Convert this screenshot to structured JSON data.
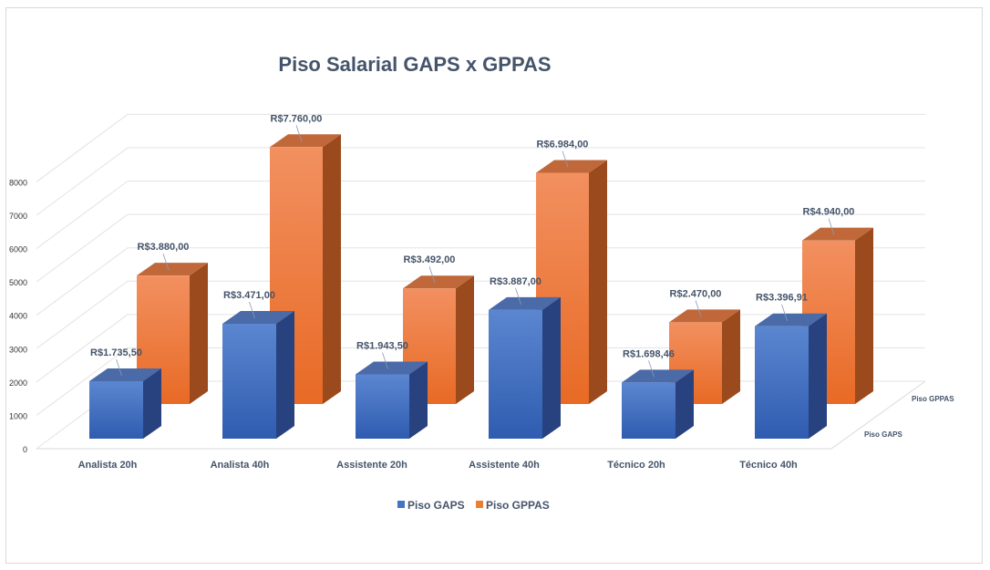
{
  "chart_data": {
    "type": "bar",
    "title": "Piso Salarial GAPS x GPPAS",
    "categories": [
      "Analista 20h",
      "Analista 40h",
      "Assistente 20h",
      "Assistente 40h",
      "Técnico 20h",
      "Técnico 40h"
    ],
    "series": [
      {
        "name": "Piso  GAPS",
        "values": [
          1735.5,
          3471.0,
          1943.5,
          3887.0,
          1698.46,
          3396.91
        ],
        "labels": [
          "R$1.735,50",
          "R$3.471,00",
          "R$1.943,50",
          "R$3.887,00",
          "R$1.698,46",
          "R$3.396,91"
        ],
        "color": "#4472c4"
      },
      {
        "name": "Piso  GPPAS",
        "values": [
          3880.0,
          7760.0,
          3492.0,
          6984.0,
          2470.0,
          4940.0
        ],
        "labels": [
          "R$3.880,00",
          "R$7.760,00",
          "R$3.492,00",
          "R$6.984,00",
          "R$2.470,00",
          "R$4.940,00"
        ],
        "color": "#ed7d31"
      }
    ],
    "yticks": [
      0,
      1000,
      2000,
      3000,
      4000,
      5000,
      6000,
      7000,
      8000
    ],
    "ylim": [
      0,
      8000
    ],
    "grid": true,
    "legend": "bottom",
    "style": "3d-clustered-depth"
  }
}
